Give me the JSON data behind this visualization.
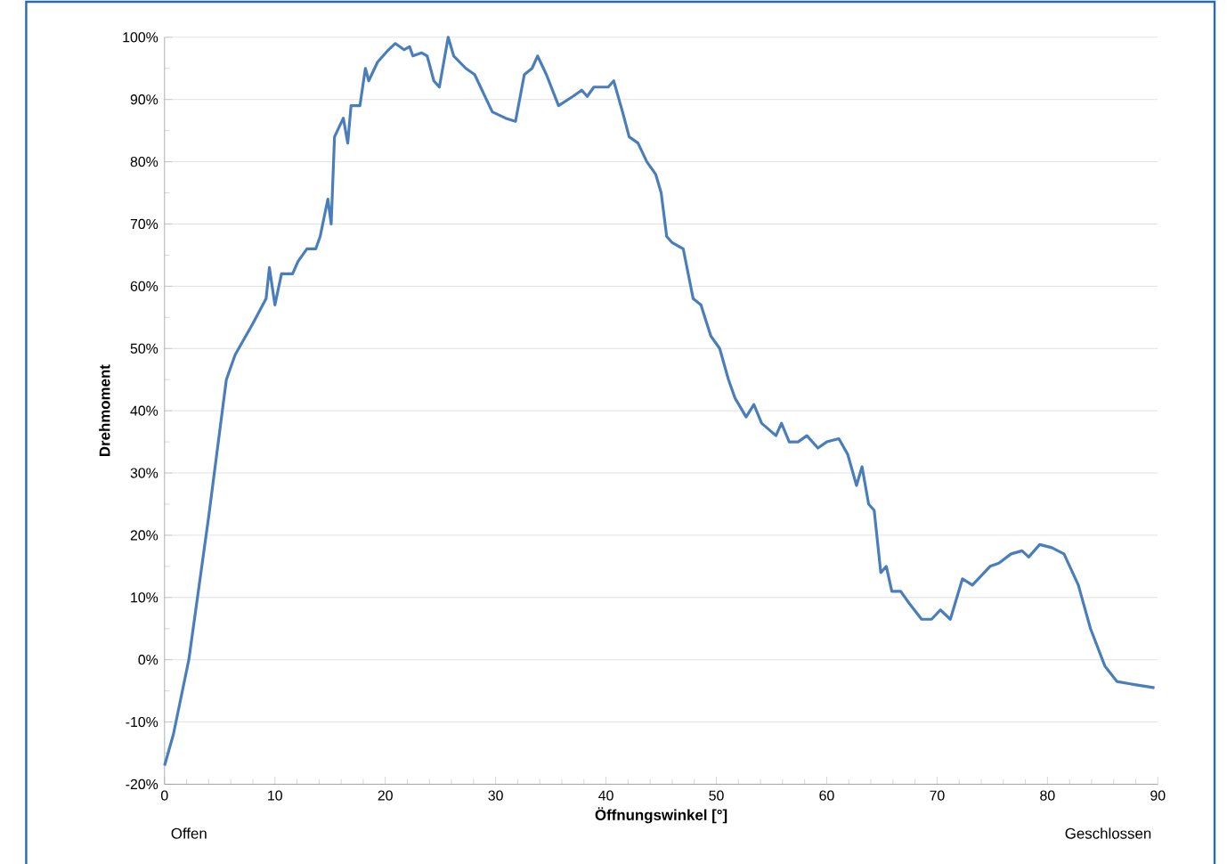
{
  "chart_data": {
    "type": "line",
    "xlabel": "Öffnungswinkel [°]",
    "ylabel": "Drehmoment",
    "annotations": [
      "Offen",
      "Geschlossen"
    ],
    "xlim": [
      0,
      90
    ],
    "xticks": [
      0,
      10,
      20,
      30,
      40,
      50,
      60,
      70,
      80,
      90
    ],
    "ylim": [
      -20,
      100
    ],
    "yticks": [
      {
        "value": -20,
        "label": "-20%"
      },
      {
        "value": -10,
        "label": "-10%"
      },
      {
        "value": 0,
        "label": "0%"
      },
      {
        "value": 10,
        "label": "10%"
      },
      {
        "value": 20,
        "label": "20%"
      },
      {
        "value": 30,
        "label": "30%"
      },
      {
        "value": 40,
        "label": "40%"
      },
      {
        "value": 50,
        "label": "50%"
      },
      {
        "value": 60,
        "label": "60%"
      },
      {
        "value": 70,
        "label": "70%"
      },
      {
        "value": 80,
        "label": "80%"
      },
      {
        "value": 90,
        "label": "90%"
      },
      {
        "value": 100,
        "label": "100%"
      }
    ],
    "grid": "y",
    "marker": "none",
    "line_style": "solid",
    "series": [
      {
        "color": "#4a7ebb",
        "x": [
          0,
          0.8,
          2.2,
          4,
          5.6,
          6.4,
          8,
          9.2,
          9.5,
          10,
          10.6,
          11.6,
          12.1,
          12.9,
          13.7,
          14.1,
          14.8,
          15.1,
          15.4,
          16.2,
          16.6,
          16.9,
          17.7,
          18.2,
          18.5,
          19.3,
          20.3,
          20.9,
          21.7,
          22.2,
          22.5,
          23.3,
          23.8,
          24.4,
          24.9,
          25.7,
          26.2,
          27.3,
          28.1,
          29.7,
          30.9,
          31.8,
          32.6,
          33.3,
          33.8,
          34.6,
          35.7,
          37,
          37.8,
          38.3,
          38.9,
          40.2,
          40.7,
          41.5,
          41.8,
          42.1,
          42.9,
          43.7,
          44.5,
          45,
          45.5,
          46,
          47,
          47.9,
          48.6,
          49.5,
          50.3,
          51.1,
          51.7,
          52.7,
          53.4,
          54.1,
          55.4,
          55.9,
          56.6,
          57.4,
          58.2,
          59.2,
          60,
          61.1,
          61.9,
          62.7,
          63.2,
          63.8,
          64.3,
          64.9,
          65.4,
          65.9,
          66.7,
          67.5,
          68.6,
          69.5,
          70.3,
          71.2,
          72.3,
          73.2,
          74.8,
          75.6,
          76.7,
          77.7,
          78.3,
          79.3,
          80.4,
          81.5,
          82.8,
          83.9,
          85.2,
          86.3,
          87.9,
          89.7
        ],
        "values": [
          -17,
          -12,
          0,
          23,
          45,
          49,
          54,
          58,
          63,
          57,
          62,
          62,
          64,
          66,
          66,
          68,
          74,
          70,
          84,
          87,
          83,
          89,
          89,
          95,
          93,
          96,
          98,
          99,
          98,
          98.5,
          97,
          97.5,
          97,
          93,
          92,
          100,
          97,
          95,
          94,
          88,
          87,
          86.5,
          94,
          95,
          97,
          94,
          89,
          90.5,
          91.5,
          90.5,
          92,
          92,
          93,
          88,
          86,
          84,
          83,
          80,
          78,
          75,
          68,
          67,
          66,
          58,
          57,
          52,
          50,
          45,
          42,
          39,
          41,
          38,
          36,
          38,
          35,
          35,
          36,
          34,
          35,
          35.5,
          33,
          28,
          31,
          25,
          24,
          14,
          15,
          11,
          11,
          9,
          6.5,
          6.5,
          8,
          6.5,
          13,
          12,
          15,
          15.5,
          17,
          17.5,
          16.5,
          18.5,
          18,
          17,
          12,
          5,
          -1,
          -3.5,
          -4,
          -4.5
        ]
      }
    ]
  }
}
